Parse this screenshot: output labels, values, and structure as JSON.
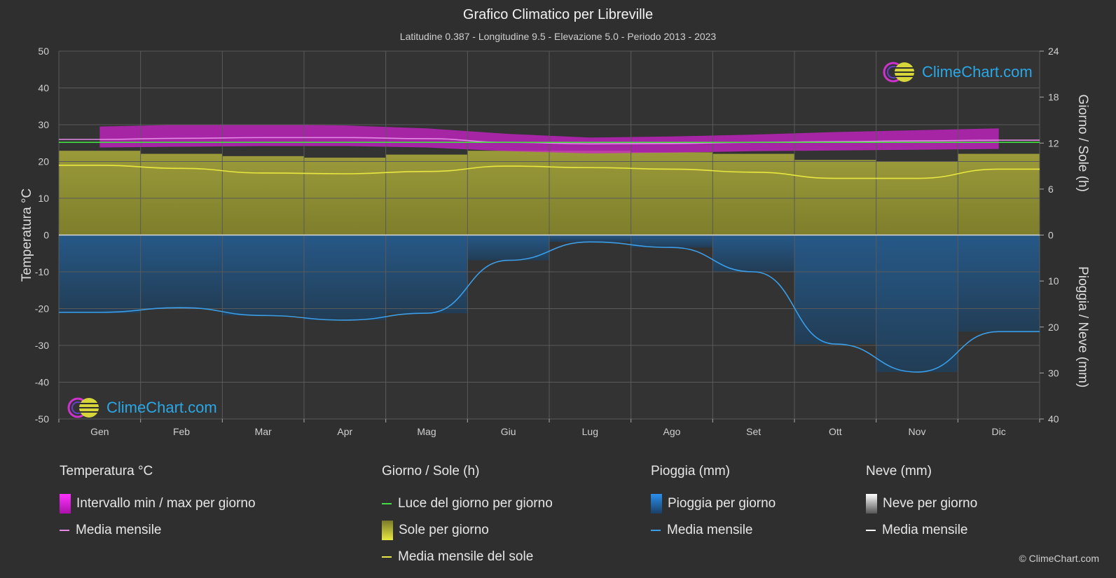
{
  "title": "Grafico Climatico per Libreville",
  "subtitle": "Latitudine 0.387 - Longitudine 9.5 - Elevazione 5.0 - Periodo 2013 - 2023",
  "logo_text": "ClimeChart.com",
  "copyright": "© ClimeChart.com",
  "chart_data": {
    "type": "line",
    "categories": [
      "Gen",
      "Feb",
      "Mar",
      "Apr",
      "Mag",
      "Giu",
      "Lug",
      "Ago",
      "Set",
      "Ott",
      "Nov",
      "Dic"
    ],
    "axes": {
      "left": {
        "label": "Temperatura °C",
        "min": -50,
        "max": 50,
        "ticks": [
          "50",
          "40",
          "30",
          "20",
          "10",
          "0",
          "-10",
          "-20",
          "-30",
          "-40",
          "-50"
        ]
      },
      "right_top": {
        "label": "Giorno / Sole (h)",
        "min": 0,
        "max": 24,
        "ticks": [
          "24",
          "18",
          "12",
          "6",
          "0"
        ]
      },
      "right_bottom": {
        "label": "Pioggia / Neve (mm)",
        "min": 0,
        "max": 40,
        "ticks": [
          "0",
          "10",
          "20",
          "30",
          "40"
        ]
      }
    },
    "grid": true,
    "series": [
      {
        "name": "Intervallo min / max per giorno",
        "kind": "band",
        "axis": "left",
        "color": "#cc22cc",
        "min": [
          23.8,
          24.0,
          24.2,
          24.2,
          23.8,
          22.8,
          22.2,
          22.4,
          22.8,
          23.0,
          23.2,
          23.4
        ],
        "max": [
          29.5,
          30.0,
          30.0,
          29.8,
          29.0,
          27.5,
          26.5,
          26.8,
          27.3,
          28.0,
          28.5,
          29.0
        ]
      },
      {
        "name": "Media mensile",
        "kind": "line",
        "axis": "left",
        "color": "#e48ae4",
        "values": [
          26.0,
          26.3,
          26.5,
          26.5,
          26.2,
          25.2,
          24.8,
          24.9,
          25.2,
          25.4,
          25.6,
          25.8
        ]
      },
      {
        "name": "Luce del giorno per giorno",
        "kind": "line",
        "axis": "right_top",
        "color": "#44dd44",
        "values": [
          12.1,
          12.1,
          12.1,
          12.1,
          12.1,
          12.1,
          12.1,
          12.1,
          12.1,
          12.1,
          12.1,
          12.1
        ]
      },
      {
        "name": "Sole per giorno",
        "kind": "bars",
        "axis": "right_top",
        "color": "#c8c83a",
        "values": [
          11.0,
          10.6,
          10.3,
          10.1,
          10.5,
          11.0,
          11.0,
          10.8,
          10.6,
          9.8,
          9.6,
          10.6
        ]
      },
      {
        "name": "Media mensile del sole",
        "kind": "line",
        "axis": "right_top",
        "color": "#e8e840",
        "values": [
          9.1,
          8.7,
          8.1,
          8.0,
          8.3,
          9.0,
          8.8,
          8.6,
          8.2,
          7.4,
          7.4,
          8.6
        ]
      },
      {
        "name": "Pioggia per giorno",
        "kind": "bars",
        "axis": "right_bottom",
        "color": "#2a78c0",
        "values": [
          17.0,
          16.0,
          17.5,
          18.5,
          17.0,
          5.5,
          1.5,
          2.7,
          8.0,
          23.7,
          29.8,
          21.0
        ]
      },
      {
        "name": "Media mensile",
        "kind": "line",
        "axis": "right_bottom",
        "color": "#3a9ee8",
        "values": [
          16.8,
          15.8,
          17.5,
          18.5,
          17.0,
          5.5,
          1.5,
          2.7,
          8.0,
          23.7,
          29.8,
          21.0
        ]
      }
    ]
  },
  "legend": {
    "temperature": {
      "header": "Temperatura °C",
      "items": [
        "Intervallo min / max per giorno",
        "Media mensile"
      ]
    },
    "sun": {
      "header": "Giorno / Sole (h)",
      "items": [
        "Luce del giorno per giorno",
        "Sole per giorno",
        "Media mensile del sole"
      ]
    },
    "rain": {
      "header": "Pioggia (mm)",
      "items": [
        "Pioggia per giorno",
        "Media mensile"
      ]
    },
    "snow": {
      "header": "Neve (mm)",
      "items": [
        "Neve per giorno",
        "Media mensile"
      ]
    }
  },
  "colors": {
    "background": "#2f2f2f",
    "temp_band": "#cc22cc",
    "temp_mean": "#e48ae4",
    "daylight": "#44dd44",
    "sun": "#c8c83a",
    "sun_mean": "#e8e840",
    "rain": "#2a78c0",
    "rain_mean": "#3a9ee8",
    "snow": "#dddddd",
    "snow_mean": "#ffffff"
  }
}
